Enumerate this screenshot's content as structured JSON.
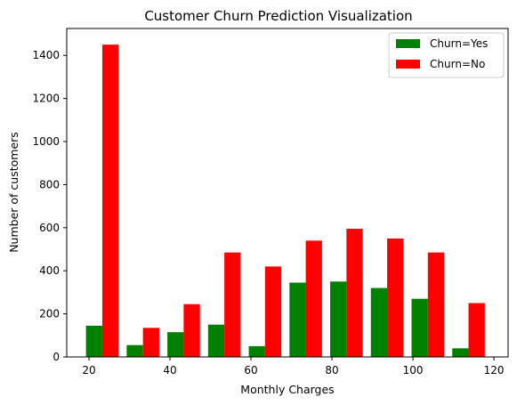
{
  "chart_data": {
    "type": "bar",
    "title": "Customer Churn Prediction Visualization",
    "xlabel": "Monthly Charges",
    "ylabel": "Number of customers",
    "xlim": [
      14.5,
      123.5
    ],
    "ylim": [
      0,
      1525
    ],
    "xticks": [
      20,
      40,
      60,
      80,
      100,
      120
    ],
    "yticks": [
      0,
      200,
      400,
      600,
      800,
      1000,
      1200,
      1400
    ],
    "bin_edges": [
      18.25,
      28.3,
      38.35,
      48.4,
      58.45,
      68.5,
      78.55,
      88.6,
      98.65,
      108.7,
      118.75
    ],
    "grid": false,
    "legend_position": "top-right",
    "series": [
      {
        "name": "Churn=Yes",
        "color": "#008000",
        "values": [
          145,
          55,
          115,
          150,
          50,
          345,
          350,
          320,
          270,
          40
        ]
      },
      {
        "name": "Churn=No",
        "color": "#ff0000",
        "values": [
          1450,
          135,
          245,
          485,
          420,
          540,
          595,
          550,
          485,
          250
        ]
      }
    ]
  }
}
